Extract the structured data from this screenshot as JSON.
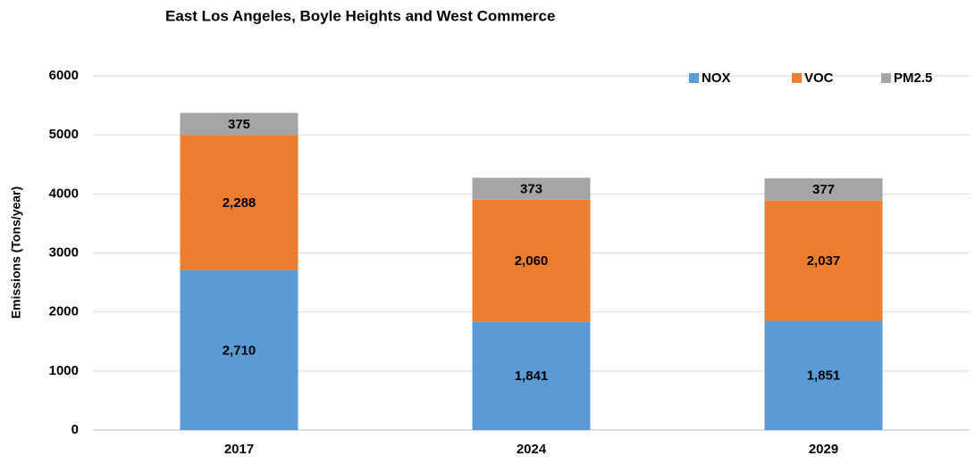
{
  "chart_data": {
    "type": "stacked_bar",
    "title": "East Los Angeles, Boyle Heights and West Commerce",
    "y_label": "Emissions (Tons/year)",
    "categories": [
      "2017",
      "2024",
      "2029"
    ],
    "series": [
      {
        "name": "NOX",
        "color": "#5b9bd5",
        "values": [
          2710,
          1841,
          1851
        ],
        "value_labels": [
          "2,710",
          "1,841",
          "1,851"
        ]
      },
      {
        "name": "VOC",
        "color": "#ed7d31",
        "values": [
          2288,
          2060,
          2037
        ],
        "value_labels": [
          "2,288",
          "2,060",
          "2,037"
        ]
      },
      {
        "name": "PM2.5",
        "color": "#a5a5a5",
        "values": [
          375,
          373,
          377
        ],
        "value_labels": [
          "375",
          "373",
          "377"
        ]
      }
    ],
    "ylim": [
      0,
      6000
    ],
    "yticks": [
      0,
      1000,
      2000,
      3000,
      4000,
      5000,
      6000
    ],
    "grid": true,
    "legend": "top-right"
  }
}
